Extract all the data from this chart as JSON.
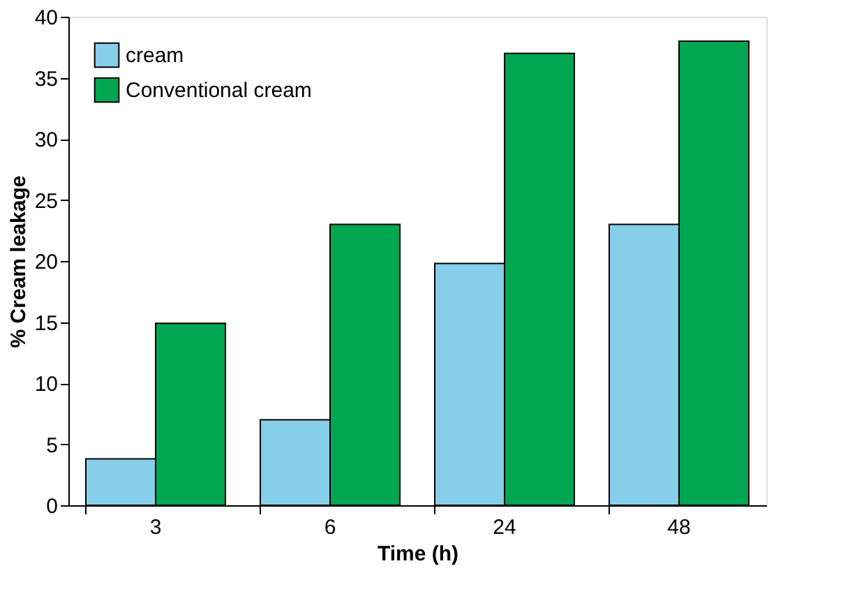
{
  "chart_data": {
    "type": "bar",
    "xlabel": "Time (h)",
    "ylabel": "% Cream leakage",
    "categories": [
      "3",
      "6",
      "24",
      "48"
    ],
    "series": [
      {
        "name": "cream",
        "color": "#87ceeb",
        "values": [
          3.8,
          7,
          19.8,
          23
        ]
      },
      {
        "name": "Conventional cream",
        "color": "#00a651",
        "values": [
          14.9,
          23,
          37,
          38
        ]
      }
    ],
    "ylim": [
      0,
      40
    ],
    "yticks": [
      0,
      5,
      10,
      15,
      20,
      25,
      30,
      35,
      40
    ],
    "grid": false,
    "legend": "top left"
  }
}
